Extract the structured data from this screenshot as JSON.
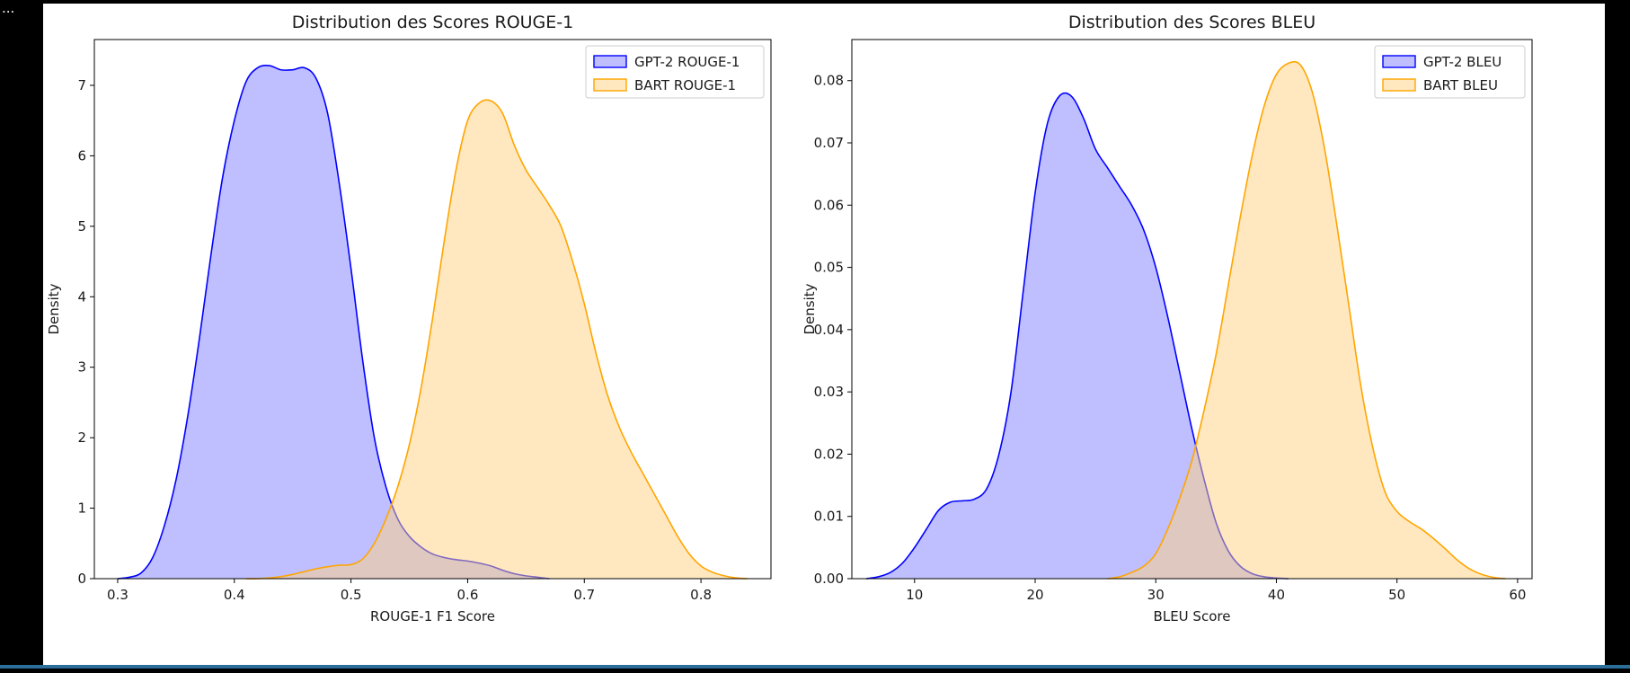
{
  "output_prompt": "...",
  "chart_data": [
    {
      "type": "area",
      "title": "Distribution des Scores ROUGE-1",
      "xlabel": "ROUGE-1 F1 Score",
      "ylabel": "Density",
      "xlim": [
        0.28,
        0.86
      ],
      "ylim": [
        0,
        7.65
      ],
      "xticks": [
        0.3,
        0.4,
        0.5,
        0.6,
        0.7,
        0.8
      ],
      "xtick_labels": [
        "0.3",
        "0.4",
        "0.5",
        "0.6",
        "0.7",
        "0.8"
      ],
      "yticks": [
        0,
        1,
        2,
        3,
        4,
        5,
        6,
        7
      ],
      "ytick_labels": [
        "0",
        "1",
        "2",
        "3",
        "4",
        "5",
        "6",
        "7"
      ],
      "grid": false,
      "legend_position": "top-right",
      "series": [
        {
          "name": "GPT-2 ROUGE-1",
          "color": "#0000ff",
          "fill": "#8080ff",
          "x": [
            0.3,
            0.31,
            0.32,
            0.33,
            0.34,
            0.35,
            0.36,
            0.37,
            0.38,
            0.39,
            0.4,
            0.41,
            0.42,
            0.43,
            0.44,
            0.45,
            0.46,
            0.47,
            0.48,
            0.49,
            0.5,
            0.51,
            0.52,
            0.53,
            0.54,
            0.55,
            0.56,
            0.57,
            0.58,
            0.59,
            0.6,
            0.61,
            0.62,
            0.63,
            0.64,
            0.65,
            0.66,
            0.67
          ],
          "y": [
            0.0,
            0.02,
            0.08,
            0.3,
            0.75,
            1.4,
            2.3,
            3.4,
            4.6,
            5.7,
            6.5,
            7.05,
            7.25,
            7.28,
            7.22,
            7.22,
            7.25,
            7.1,
            6.6,
            5.6,
            4.4,
            3.1,
            2.0,
            1.3,
            0.85,
            0.6,
            0.45,
            0.35,
            0.3,
            0.27,
            0.25,
            0.22,
            0.18,
            0.12,
            0.07,
            0.04,
            0.02,
            0.0
          ]
        },
        {
          "name": "BART ROUGE-1",
          "color": "#ffa500",
          "fill": "#ffd27f",
          "x": [
            0.41,
            0.42,
            0.43,
            0.44,
            0.45,
            0.46,
            0.47,
            0.48,
            0.49,
            0.5,
            0.51,
            0.52,
            0.53,
            0.54,
            0.55,
            0.56,
            0.57,
            0.58,
            0.59,
            0.6,
            0.61,
            0.62,
            0.63,
            0.64,
            0.65,
            0.66,
            0.67,
            0.68,
            0.69,
            0.7,
            0.71,
            0.72,
            0.73,
            0.74,
            0.75,
            0.76,
            0.77,
            0.78,
            0.79,
            0.8,
            0.81,
            0.82,
            0.83,
            0.84
          ],
          "y": [
            0.0,
            0.0,
            0.01,
            0.03,
            0.06,
            0.1,
            0.14,
            0.17,
            0.19,
            0.2,
            0.28,
            0.5,
            0.85,
            1.3,
            1.9,
            2.7,
            3.7,
            4.8,
            5.8,
            6.5,
            6.75,
            6.78,
            6.6,
            6.15,
            5.8,
            5.55,
            5.3,
            5.0,
            4.5,
            3.9,
            3.2,
            2.6,
            2.15,
            1.8,
            1.5,
            1.2,
            0.9,
            0.6,
            0.35,
            0.18,
            0.09,
            0.04,
            0.01,
            0.0
          ]
        }
      ]
    },
    {
      "type": "area",
      "title": "Distribution des Scores BLEU",
      "xlabel": "BLEU Score",
      "ylabel": "Density",
      "xlim": [
        4.8,
        61.2
      ],
      "ylim": [
        0,
        0.0866
      ],
      "xticks": [
        10,
        20,
        30,
        40,
        50,
        60
      ],
      "xtick_labels": [
        "10",
        "20",
        "30",
        "40",
        "50",
        "60"
      ],
      "yticks": [
        0,
        0.01,
        0.02,
        0.03,
        0.04,
        0.05,
        0.06,
        0.07,
        0.08
      ],
      "ytick_labels": [
        "0.00",
        "0.01",
        "0.02",
        "0.03",
        "0.04",
        "0.05",
        "0.06",
        "0.07",
        "0.08"
      ],
      "grid": false,
      "legend_position": "top-right",
      "series": [
        {
          "name": "GPT-2 BLEU",
          "color": "#0000ff",
          "fill": "#8080ff",
          "x": [
            6,
            7,
            8,
            9,
            10,
            11,
            12,
            13,
            14,
            15,
            16,
            17,
            18,
            19,
            20,
            21,
            22,
            23,
            24,
            25,
            26,
            27,
            28,
            29,
            30,
            31,
            32,
            33,
            34,
            35,
            36,
            37,
            38,
            39,
            40,
            41
          ],
          "y": [
            0.0,
            0.0003,
            0.001,
            0.0025,
            0.005,
            0.008,
            0.011,
            0.0123,
            0.0125,
            0.0128,
            0.0145,
            0.02,
            0.03,
            0.046,
            0.062,
            0.073,
            0.0775,
            0.0775,
            0.074,
            0.069,
            0.066,
            0.063,
            0.06,
            0.056,
            0.05,
            0.042,
            0.033,
            0.024,
            0.016,
            0.009,
            0.0045,
            0.002,
            0.0008,
            0.0003,
            0.0001,
            0.0
          ]
        },
        {
          "name": "BART BLEU",
          "color": "#ffa500",
          "fill": "#ffd27f",
          "x": [
            26,
            27,
            28,
            29,
            30,
            31,
            32,
            33,
            34,
            35,
            36,
            37,
            38,
            39,
            40,
            41,
            42,
            43,
            44,
            45,
            46,
            47,
            48,
            49,
            50,
            51,
            52,
            53,
            54,
            55,
            56,
            57,
            58,
            59
          ],
          "y": [
            0.0,
            0.0003,
            0.001,
            0.002,
            0.004,
            0.008,
            0.013,
            0.019,
            0.027,
            0.036,
            0.047,
            0.058,
            0.068,
            0.076,
            0.081,
            0.0828,
            0.0825,
            0.078,
            0.069,
            0.057,
            0.044,
            0.031,
            0.021,
            0.014,
            0.0108,
            0.0092,
            0.008,
            0.0065,
            0.0048,
            0.003,
            0.0016,
            0.0007,
            0.0002,
            0.0
          ]
        }
      ]
    }
  ]
}
